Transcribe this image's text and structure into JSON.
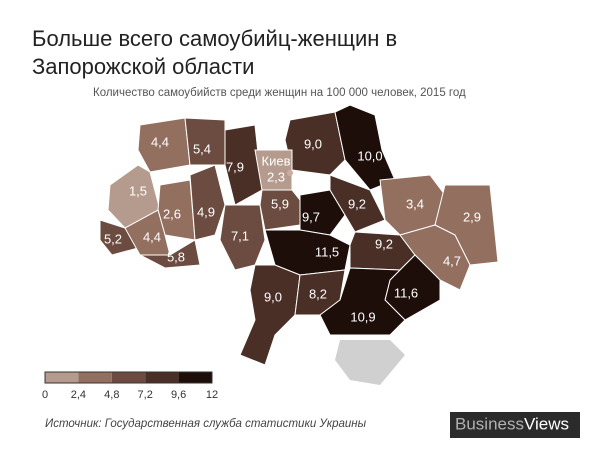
{
  "title_lines": [
    "Больше всего самоубийц-женщин в",
    "Запорожской области"
  ],
  "subtitle": "Количество самоубийств среди женщин на 100 000 человек, 2015 год",
  "capital": "Киев",
  "regions": [
    {
      "value": 4.4,
      "label": "4,4"
    },
    {
      "value": 5.4,
      "label": "5,4"
    },
    {
      "value": 7.9,
      "label": "7,9"
    },
    {
      "value": 9.0,
      "label": "9,0"
    },
    {
      "value": 10.0,
      "label": "10,0"
    },
    {
      "value": 1.5,
      "label": "1,5"
    },
    {
      "value": 2.3,
      "label": "2,3"
    },
    {
      "value": 5.9,
      "label": "5,9"
    },
    {
      "value": 2.6,
      "label": "2,6"
    },
    {
      "value": 4.9,
      "label": "4,9"
    },
    {
      "value": 7.1,
      "label": "7,1"
    },
    {
      "value": 9.7,
      "label": "9,7"
    },
    {
      "value": 9.2,
      "label": "9,2"
    },
    {
      "value": 3.4,
      "label": "3,4"
    },
    {
      "value": 2.9,
      "label": "2,9"
    },
    {
      "value": 5.2,
      "label": "5,2"
    },
    {
      "value": 4.4,
      "label": "4,4"
    },
    {
      "value": 5.8,
      "label": "5,8"
    },
    {
      "value": 11.5,
      "label": "11,5"
    },
    {
      "value": 9.2,
      "label": "9,2"
    },
    {
      "value": 4.7,
      "label": "4,7"
    },
    {
      "value": 9.0,
      "label": "9,0"
    },
    {
      "value": 8.2,
      "label": "8,2"
    },
    {
      "value": 11.6,
      "label": "11,6"
    },
    {
      "value": 10.9,
      "label": "10,9"
    }
  ],
  "legend": {
    "colors": [
      "#b59b8d",
      "#936f60",
      "#6c4c40",
      "#4a2f27",
      "#1d0e0a"
    ],
    "ticks": [
      0,
      {
        "value": 2.4,
        "label": "2,4"
      },
      {
        "value": 4.8,
        "label": "4,8"
      },
      {
        "value": 7.2,
        "label": "7,2"
      },
      {
        "value": 9.6,
        "label": "9,6"
      },
      12
    ]
  },
  "source": "Источник: Государственная служба статистики Украины",
  "brand": [
    "Business",
    "Views"
  ]
}
